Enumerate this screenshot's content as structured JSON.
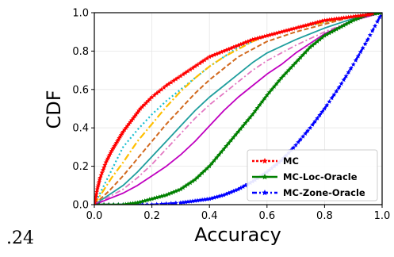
{
  "caption": ".24",
  "chart_data": {
    "type": "line",
    "xlabel": "Accuracy",
    "ylabel": "CDF",
    "xlim": [
      0.0,
      1.0
    ],
    "ylim": [
      0.0,
      1.0
    ],
    "grid": true,
    "legend_position": "lower-right",
    "xticks": [
      "0.0",
      "0.2",
      "0.4",
      "0.6",
      "0.8",
      "1.0"
    ],
    "yticks": [
      "0.0",
      "0.2",
      "0.4",
      "0.6",
      "0.8",
      "1.0"
    ],
    "series": [
      {
        "name": "MC",
        "legend": true,
        "color": "#ff0000",
        "dash": "3,2",
        "marker": "star",
        "width": 2.6,
        "x": [
          0.0,
          0.01,
          0.02,
          0.04,
          0.06,
          0.08,
          0.1,
          0.13,
          0.16,
          0.2,
          0.25,
          0.3,
          0.35,
          0.4,
          0.45,
          0.5,
          0.55,
          0.6,
          0.65,
          0.7,
          0.75,
          0.8,
          0.85,
          0.9,
          0.95,
          0.97
        ],
        "y": [
          0.0,
          0.08,
          0.14,
          0.22,
          0.28,
          0.33,
          0.38,
          0.44,
          0.5,
          0.56,
          0.62,
          0.67,
          0.72,
          0.77,
          0.8,
          0.83,
          0.86,
          0.88,
          0.9,
          0.92,
          0.94,
          0.96,
          0.97,
          0.98,
          0.99,
          1.0
        ]
      },
      {
        "name": "MC-Loc-Oracle",
        "legend": true,
        "color": "#008000",
        "dash": "",
        "marker": "star",
        "width": 2.6,
        "x": [
          0.0,
          0.1,
          0.15,
          0.2,
          0.25,
          0.3,
          0.35,
          0.4,
          0.45,
          0.5,
          0.55,
          0.6,
          0.65,
          0.7,
          0.75,
          0.8,
          0.85,
          0.9,
          0.95,
          1.0
        ],
        "y": [
          0.0,
          0.0,
          0.01,
          0.03,
          0.05,
          0.08,
          0.13,
          0.2,
          0.29,
          0.38,
          0.47,
          0.57,
          0.66,
          0.74,
          0.82,
          0.88,
          0.92,
          0.96,
          0.99,
          1.0
        ]
      },
      {
        "name": "MC-Zone-Oracle",
        "legend": true,
        "color": "#0000ff",
        "dash": "6,3,2,3",
        "marker": "star",
        "width": 2.6,
        "x": [
          0.0,
          0.1,
          0.2,
          0.3,
          0.35,
          0.4,
          0.45,
          0.5,
          0.55,
          0.6,
          0.65,
          0.7,
          0.75,
          0.8,
          0.85,
          0.9,
          0.95,
          1.0
        ],
        "y": [
          0.0,
          0.0,
          0.0,
          0.01,
          0.02,
          0.03,
          0.05,
          0.08,
          0.12,
          0.17,
          0.23,
          0.31,
          0.4,
          0.5,
          0.61,
          0.73,
          0.86,
          1.0
        ]
      },
      {
        "legend": false,
        "color": "#17becf",
        "dash": "2,3",
        "marker": "",
        "width": 2.2,
        "x": [
          0.0,
          0.02,
          0.05,
          0.08,
          0.1,
          0.15,
          0.2,
          0.25,
          0.3,
          0.35,
          0.4,
          0.45,
          0.5,
          0.55,
          0.6,
          0.65,
          0.7,
          0.8,
          0.9,
          1.0
        ],
        "y": [
          0.0,
          0.06,
          0.15,
          0.24,
          0.3,
          0.39,
          0.47,
          0.54,
          0.6,
          0.66,
          0.72,
          0.77,
          0.82,
          0.85,
          0.88,
          0.9,
          0.92,
          0.95,
          0.98,
          1.0
        ]
      },
      {
        "legend": false,
        "color": "#ffbf00",
        "dash": "9,3,2,3",
        "marker": "",
        "width": 2.2,
        "x": [
          0.0,
          0.03,
          0.06,
          0.1,
          0.15,
          0.2,
          0.25,
          0.3,
          0.35,
          0.4,
          0.45,
          0.5,
          0.55,
          0.6,
          0.7,
          0.8,
          0.9,
          1.0
        ],
        "y": [
          0.0,
          0.07,
          0.14,
          0.22,
          0.33,
          0.42,
          0.51,
          0.59,
          0.66,
          0.72,
          0.77,
          0.81,
          0.85,
          0.88,
          0.92,
          0.95,
          0.98,
          1.0
        ]
      },
      {
        "legend": false,
        "color": "#d2691e",
        "dash": "6,3",
        "marker": "",
        "width": 2.0,
        "x": [
          0.0,
          0.05,
          0.1,
          0.15,
          0.2,
          0.25,
          0.3,
          0.35,
          0.4,
          0.45,
          0.5,
          0.55,
          0.6,
          0.7,
          0.8,
          0.9,
          1.0
        ],
        "y": [
          0.0,
          0.07,
          0.15,
          0.24,
          0.33,
          0.42,
          0.5,
          0.58,
          0.65,
          0.71,
          0.77,
          0.81,
          0.85,
          0.9,
          0.94,
          0.98,
          1.0
        ]
      },
      {
        "legend": false,
        "color": "#1f9e9e",
        "dash": "",
        "marker": "",
        "width": 1.8,
        "x": [
          0.0,
          0.05,
          0.1,
          0.15,
          0.2,
          0.25,
          0.3,
          0.35,
          0.4,
          0.45,
          0.5,
          0.55,
          0.6,
          0.7,
          0.8,
          0.9,
          1.0
        ],
        "y": [
          0.0,
          0.05,
          0.1,
          0.17,
          0.25,
          0.33,
          0.41,
          0.49,
          0.56,
          0.62,
          0.68,
          0.74,
          0.79,
          0.86,
          0.92,
          0.97,
          1.0
        ]
      },
      {
        "legend": false,
        "color": "#e377c2",
        "dash": "7,3,2,3",
        "marker": "",
        "width": 1.8,
        "x": [
          0.0,
          0.05,
          0.1,
          0.15,
          0.2,
          0.25,
          0.3,
          0.35,
          0.4,
          0.45,
          0.5,
          0.55,
          0.6,
          0.7,
          0.8,
          0.9,
          1.0
        ],
        "y": [
          0.0,
          0.04,
          0.08,
          0.14,
          0.21,
          0.29,
          0.37,
          0.45,
          0.52,
          0.58,
          0.64,
          0.7,
          0.75,
          0.83,
          0.9,
          0.96,
          1.0
        ]
      },
      {
        "legend": false,
        "color": "#c000c0",
        "dash": "",
        "marker": "",
        "width": 1.8,
        "x": [
          0.0,
          0.05,
          0.1,
          0.15,
          0.2,
          0.25,
          0.3,
          0.35,
          0.4,
          0.45,
          0.5,
          0.55,
          0.6,
          0.65,
          0.7,
          0.8,
          0.9,
          1.0
        ],
        "y": [
          0.0,
          0.03,
          0.06,
          0.1,
          0.15,
          0.2,
          0.26,
          0.33,
          0.41,
          0.49,
          0.56,
          0.62,
          0.68,
          0.73,
          0.79,
          0.89,
          0.96,
          1.0
        ]
      }
    ]
  }
}
